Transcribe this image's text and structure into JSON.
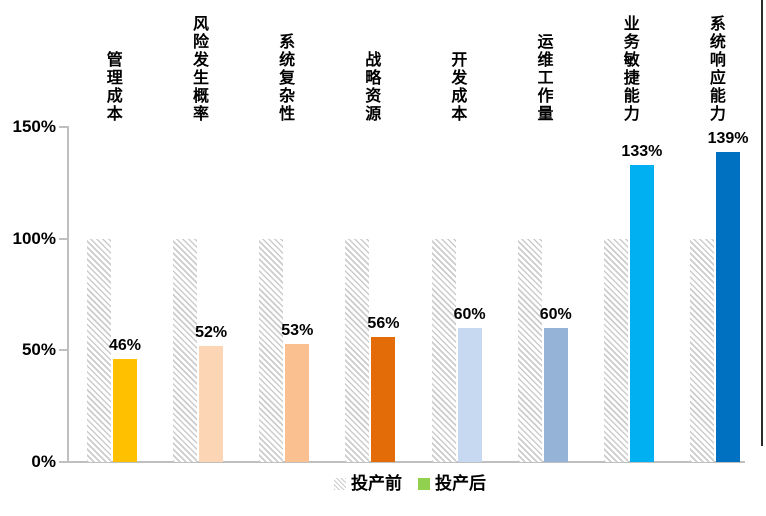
{
  "chart_data": {
    "type": "bar",
    "title": "",
    "categories": [
      "管理成本",
      "风险发生概率",
      "系统复杂性",
      "战略资源",
      "开发成本",
      "运维工作量",
      "业务敏捷能力",
      "系统响应能力"
    ],
    "series": [
      {
        "name": "投产前",
        "values": [
          100,
          100,
          100,
          100,
          100,
          100,
          100,
          100
        ],
        "style": "hatched-gray"
      },
      {
        "name": "投产后",
        "values": [
          46,
          52,
          53,
          56,
          60,
          60,
          133,
          139
        ],
        "value_labels": [
          "46%",
          "52%",
          "53%",
          "56%",
          "60%",
          "60%",
          "133%",
          "139%"
        ],
        "bar_colors": [
          "#FFC000",
          "#FCD5B4",
          "#FAC090",
          "#E36C09",
          "#C6D9F1",
          "#95B3D7",
          "#00B0F0",
          "#0070C0"
        ]
      }
    ],
    "xlabel": "",
    "ylabel": "",
    "ylim": [
      0,
      150
    ],
    "yticks": [
      {
        "value": 0,
        "label": "0%"
      },
      {
        "value": 50,
        "label": "50%"
      },
      {
        "value": 100,
        "label": "100%"
      },
      {
        "value": 150,
        "label": "150%"
      }
    ],
    "grid": false,
    "legend_position": "bottom",
    "legend": [
      {
        "label": "投产前",
        "swatch": "hatched-gray"
      },
      {
        "label": "投产后",
        "swatch_color": "#92D050"
      }
    ]
  },
  "colors": {
    "axis_line": "#BFBFBF",
    "hatch_gray": "#CCCCCC",
    "text": "#000000",
    "legend_after_swatch": "#92D050"
  }
}
